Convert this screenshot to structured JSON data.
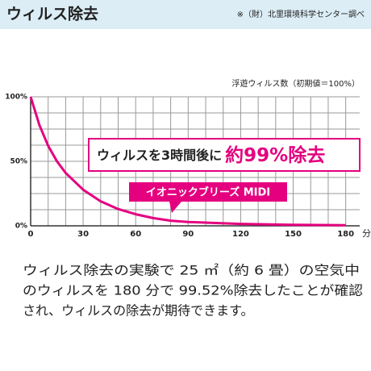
{
  "header": {
    "title": "ウィルス除去",
    "note": "※（財）北里環境科学センター調べ"
  },
  "chart_data": {
    "type": "line",
    "title": "浮遊ウィルス数（初期値＝100%）",
    "x_unit": "分",
    "x": [
      0,
      5,
      10,
      15,
      20,
      30,
      40,
      50,
      60,
      70,
      80,
      90,
      120,
      150,
      180
    ],
    "series": [
      {
        "name": "イオニックブリーズ MIDI",
        "color": "#e4007f",
        "values": [
          100,
          78,
          62,
          50,
          41,
          28,
          19,
          13,
          9,
          6,
          4,
          3,
          1.5,
          0.8,
          0.48
        ]
      }
    ],
    "xlim": [
      0,
      188
    ],
    "ylim": [
      0,
      100
    ],
    "xticks": [
      0,
      30,
      60,
      90,
      120,
      150,
      180
    ],
    "yticks": [
      {
        "value": 0,
        "label": "0%"
      },
      {
        "value": 50,
        "label": "50%"
      },
      {
        "value": 100,
        "label": "100%"
      }
    ],
    "x_minor_grid": [
      10,
      20,
      40,
      50,
      70,
      80,
      100,
      110,
      130,
      140,
      160,
      170
    ],
    "y_minor_grid": [
      12.5,
      25,
      37.5,
      62.5,
      75,
      87.5
    ],
    "grid": true,
    "annotations": [
      "ウィルスを3時間後に",
      "約99%除去"
    ]
  },
  "description": [
    "ウィルス除去の実験で 25 ㎡（約 6 畳）の空気中",
    "のウィルスを 180 分で 99.52%除去したことが確認",
    "され、ウィルスの除去が期待できます。"
  ]
}
